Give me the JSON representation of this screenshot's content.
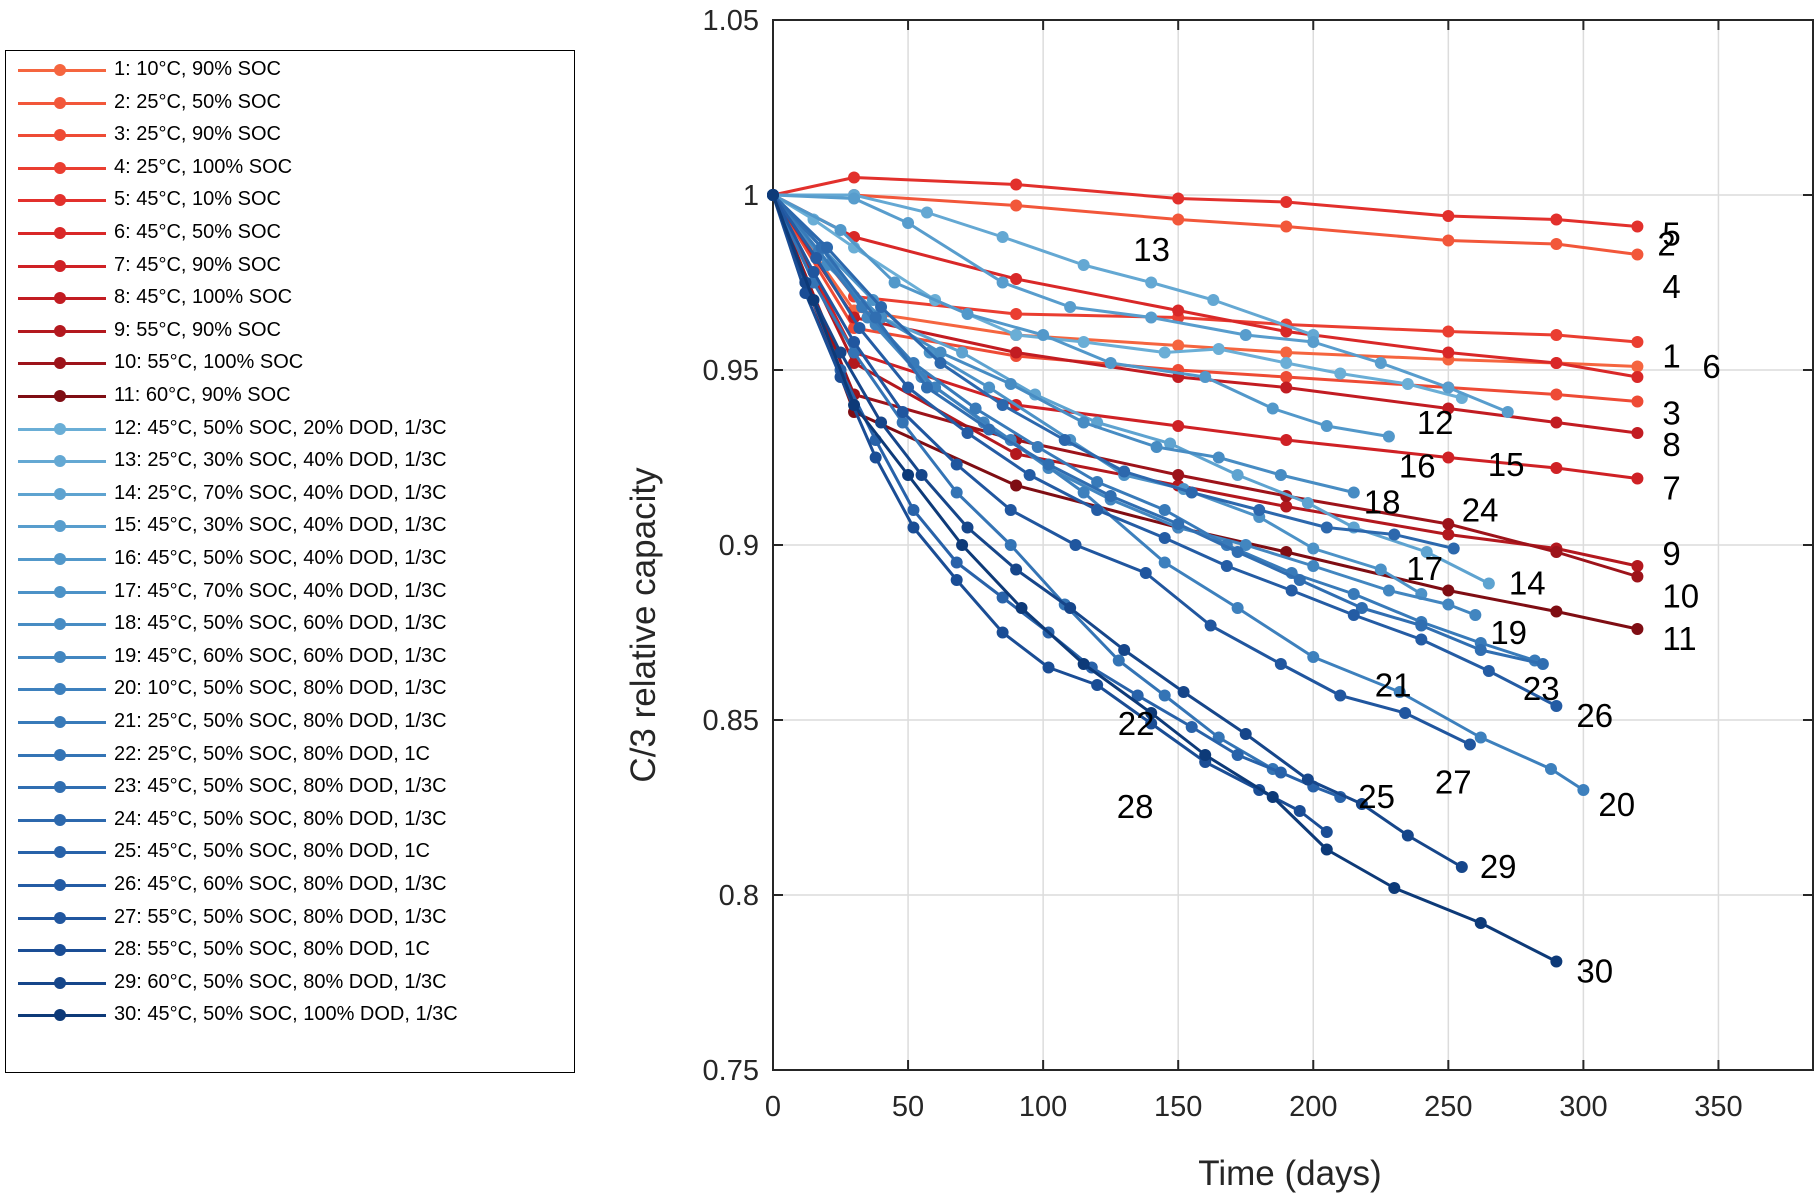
{
  "chart_data": {
    "type": "line",
    "xlabel": "Time (days)",
    "ylabel": "C/3 relative capacity",
    "xlim": [
      0,
      385
    ],
    "ylim": [
      0.75,
      1.05
    ],
    "xticks": [
      "0",
      "50",
      "100",
      "150",
      "200",
      "250",
      "300",
      "350"
    ],
    "yticks": [
      "0.75",
      "0.8",
      "0.85",
      "0.9",
      "0.95",
      "1",
      "1.05"
    ],
    "grid": true,
    "legend_placement": "left, outside",
    "series": [
      {
        "name": "1: 10°C, 90% SOC",
        "label": "1",
        "color": "#f5653f",
        "x": [
          0,
          30,
          90,
          150,
          190,
          250,
          290,
          320
        ],
        "y": [
          1,
          0.967,
          0.96,
          0.957,
          0.955,
          0.953,
          0.952,
          0.951
        ]
      },
      {
        "name": "2: 25°C, 50% SOC",
        "label": "2",
        "color": "#f2573a",
        "x": [
          0,
          30,
          90,
          150,
          190,
          250,
          290,
          320
        ],
        "y": [
          1,
          1.0,
          0.997,
          0.993,
          0.991,
          0.987,
          0.986,
          0.983
        ]
      },
      {
        "name": "3: 25°C, 90% SOC",
        "label": "3",
        "color": "#ee4b35",
        "x": [
          0,
          30,
          90,
          150,
          190,
          250,
          290,
          320
        ],
        "y": [
          1,
          0.962,
          0.954,
          0.95,
          0.948,
          0.945,
          0.943,
          0.941
        ]
      },
      {
        "name": "4: 25°C, 100% SOC",
        "label": "4",
        "color": "#ea3e31",
        "x": [
          0,
          30,
          90,
          150,
          190,
          250,
          290,
          320
        ],
        "y": [
          1,
          0.971,
          0.966,
          0.965,
          0.963,
          0.961,
          0.96,
          0.958
        ]
      },
      {
        "name": "5: 45°C, 10% SOC",
        "label": "5",
        "color": "#e2302c",
        "x": [
          0,
          30,
          90,
          150,
          190,
          250,
          290,
          320
        ],
        "y": [
          1,
          1.005,
          1.003,
          0.999,
          0.998,
          0.994,
          0.993,
          0.991
        ]
      },
      {
        "name": "6: 45°C, 50% SOC",
        "label": "6",
        "color": "#d92828",
        "x": [
          0,
          30,
          90,
          150,
          190,
          250,
          290,
          320
        ],
        "y": [
          1,
          0.988,
          0.976,
          0.967,
          0.961,
          0.955,
          0.952,
          0.948
        ]
      },
      {
        "name": "7: 45°C, 90% SOC",
        "label": "7",
        "color": "#cf2125",
        "x": [
          0,
          30,
          90,
          150,
          190,
          250,
          290,
          320
        ],
        "y": [
          1,
          0.955,
          0.94,
          0.934,
          0.93,
          0.925,
          0.922,
          0.919
        ]
      },
      {
        "name": "8: 45°C, 100% SOC",
        "label": "8",
        "color": "#c21c22",
        "x": [
          0,
          30,
          90,
          150,
          190,
          250,
          290,
          320
        ],
        "y": [
          1,
          0.965,
          0.955,
          0.948,
          0.945,
          0.939,
          0.935,
          0.932
        ]
      },
      {
        "name": "9: 55°C, 90% SOC",
        "label": "9",
        "color": "#b3181e",
        "x": [
          0,
          30,
          90,
          150,
          190,
          250,
          290,
          320
        ],
        "y": [
          1,
          0.952,
          0.926,
          0.917,
          0.911,
          0.903,
          0.899,
          0.894
        ]
      },
      {
        "name": "10: 55°C, 100% SOC",
        "label": "10",
        "color": "#9d131a",
        "x": [
          0,
          30,
          90,
          150,
          190,
          250,
          290,
          320
        ],
        "y": [
          1,
          0.943,
          0.93,
          0.92,
          0.914,
          0.906,
          0.898,
          0.891
        ]
      },
      {
        "name": "11: 60°C, 90% SOC",
        "label": "11",
        "color": "#7f0d13",
        "x": [
          0,
          30,
          90,
          150,
          190,
          250,
          290,
          320
        ],
        "y": [
          1,
          0.938,
          0.917,
          0.905,
          0.898,
          0.887,
          0.881,
          0.876
        ]
      },
      {
        "name": "12: 45°C, 50% SOC, 20% DOD, 1/3C",
        "label": "12",
        "color": "#6aaed6",
        "x": [
          0,
          15,
          30,
          60,
          90,
          115,
          145,
          165,
          190,
          210,
          235,
          255
        ],
        "y": [
          1,
          0.993,
          0.985,
          0.97,
          0.96,
          0.958,
          0.955,
          0.956,
          0.952,
          0.949,
          0.946,
          0.942
        ]
      },
      {
        "name": "13: 25°C, 30% SOC, 40% DOD, 1/3C",
        "label": "13",
        "color": "#64a8d3",
        "x": [
          0,
          30,
          57,
          85,
          115,
          140,
          163,
          200
        ],
        "y": [
          1,
          1.0,
          0.995,
          0.988,
          0.98,
          0.975,
          0.97,
          0.96
        ]
      },
      {
        "name": "14: 25°C, 70% SOC, 40% DOD, 1/3C",
        "label": "14",
        "color": "#5ea3d0",
        "x": [
          0,
          20,
          40,
          70,
          97,
          120,
          147,
          172,
          198,
          215,
          242,
          265
        ],
        "y": [
          1,
          0.98,
          0.965,
          0.955,
          0.943,
          0.935,
          0.929,
          0.92,
          0.912,
          0.905,
          0.898,
          0.889
        ]
      },
      {
        "name": "15: 45°C, 30% SOC, 40% DOD, 1/3C",
        "label": "15",
        "color": "#589dcd",
        "x": [
          0,
          30,
          50,
          85,
          110,
          140,
          175,
          200,
          225,
          250,
          272
        ],
        "y": [
          1,
          0.999,
          0.992,
          0.975,
          0.968,
          0.965,
          0.96,
          0.958,
          0.952,
          0.945,
          0.938
        ]
      },
      {
        "name": "16: 45°C, 50% SOC, 40% DOD, 1/3C",
        "label": "16",
        "color": "#5298ca",
        "x": [
          0,
          25,
          45,
          72,
          100,
          125,
          160,
          185,
          205,
          228
        ],
        "y": [
          1,
          0.99,
          0.975,
          0.966,
          0.96,
          0.952,
          0.948,
          0.939,
          0.934,
          0.931
        ]
      },
      {
        "name": "17: 45°C, 70% SOC, 40% DOD, 1/3C",
        "label": "17",
        "color": "#4c92c7",
        "x": [
          0,
          18,
          37,
          58,
          80,
          110,
          130,
          152,
          180,
          200,
          225,
          240
        ],
        "y": [
          1,
          0.985,
          0.97,
          0.955,
          0.945,
          0.93,
          0.92,
          0.916,
          0.908,
          0.899,
          0.893,
          0.886
        ]
      },
      {
        "name": "18: 45°C, 50% SOC, 60% DOD, 1/3C",
        "label": "18",
        "color": "#478cc3",
        "x": [
          0,
          20,
          40,
          62,
          88,
          115,
          142,
          165,
          188,
          215
        ],
        "y": [
          1,
          0.98,
          0.965,
          0.955,
          0.946,
          0.935,
          0.928,
          0.925,
          0.92,
          0.915
        ]
      },
      {
        "name": "19: 45°C, 60% SOC, 60% DOD, 1/3C",
        "label": "19",
        "color": "#4286c0",
        "x": [
          0,
          18,
          35,
          55,
          78,
          102,
          125,
          150,
          175,
          200,
          228,
          250,
          260
        ],
        "y": [
          1,
          0.985,
          0.965,
          0.948,
          0.935,
          0.922,
          0.913,
          0.905,
          0.9,
          0.894,
          0.887,
          0.883,
          0.88
        ]
      },
      {
        "name": "20: 10°C, 50% SOC, 80% DOD, 1/3C",
        "label": "20",
        "color": "#3d80bd",
        "x": [
          0,
          18,
          38,
          60,
          88,
          115,
          145,
          172,
          200,
          232,
          262,
          288,
          300
        ],
        "y": [
          1,
          0.985,
          0.963,
          0.945,
          0.93,
          0.915,
          0.895,
          0.882,
          0.868,
          0.858,
          0.845,
          0.836,
          0.83
        ]
      },
      {
        "name": "21: 25°C, 50% SOC, 80% DOD, 1/3C",
        "label": "21",
        "color": "#387ab9",
        "x": [
          0,
          17,
          33,
          52,
          75,
          98,
          120,
          145,
          168,
          192,
          215,
          240,
          262,
          282
        ],
        "y": [
          1,
          0.984,
          0.968,
          0.952,
          0.939,
          0.928,
          0.918,
          0.91,
          0.9,
          0.892,
          0.886,
          0.878,
          0.872,
          0.867
        ]
      },
      {
        "name": "22: 25°C, 50% SOC, 80% DOD, 1C",
        "label": "22",
        "color": "#3474b5",
        "x": [
          0,
          15,
          30,
          48,
          68,
          88,
          108,
          128,
          145,
          165,
          185
        ],
        "y": [
          1,
          0.975,
          0.955,
          0.935,
          0.915,
          0.9,
          0.883,
          0.867,
          0.857,
          0.845,
          0.836
        ]
      },
      {
        "name": "23: 45°C, 50% SOC, 80% DOD, 1/3C",
        "label": "23",
        "color": "#306eb1",
        "x": [
          0,
          18,
          38,
          57,
          80,
          102,
          125,
          150,
          172,
          195,
          218,
          240,
          262,
          285
        ],
        "y": [
          1,
          0.985,
          0.965,
          0.945,
          0.933,
          0.923,
          0.914,
          0.906,
          0.898,
          0.89,
          0.882,
          0.877,
          0.87,
          0.866
        ]
      },
      {
        "name": "24: 45°C, 50% SOC, 80% DOD, 1/3C",
        "label": "24",
        "color": "#2c68ad",
        "x": [
          0,
          20,
          40,
          62,
          85,
          108,
          130,
          155,
          180,
          205,
          230,
          252
        ],
        "y": [
          1,
          0.985,
          0.968,
          0.952,
          0.94,
          0.93,
          0.921,
          0.915,
          0.91,
          0.905,
          0.903,
          0.899
        ]
      },
      {
        "name": "25: 45°C, 50% SOC, 80% DOD, 1C",
        "label": "25",
        "color": "#2862a9",
        "x": [
          0,
          12,
          25,
          38,
          52,
          68,
          85,
          102,
          118,
          135,
          155,
          172,
          188,
          200,
          210
        ],
        "y": [
          1,
          0.975,
          0.95,
          0.93,
          0.91,
          0.895,
          0.885,
          0.875,
          0.865,
          0.857,
          0.848,
          0.84,
          0.835,
          0.831,
          0.828
        ]
      },
      {
        "name": "26: 45°C, 60% SOC, 80% DOD, 1/3C",
        "label": "26",
        "color": "#245ca4",
        "x": [
          0,
          16,
          32,
          50,
          72,
          95,
          120,
          145,
          168,
          192,
          215,
          240,
          265,
          290
        ],
        "y": [
          1,
          0.982,
          0.962,
          0.945,
          0.932,
          0.92,
          0.91,
          0.902,
          0.894,
          0.887,
          0.88,
          0.873,
          0.864,
          0.854
        ]
      },
      {
        "name": "27: 55°C, 50% SOC, 80% DOD, 1/3C",
        "label": "27",
        "color": "#20569f",
        "x": [
          0,
          15,
          30,
          48,
          68,
          88,
          112,
          138,
          162,
          188,
          210,
          234,
          258
        ],
        "y": [
          1,
          0.978,
          0.958,
          0.938,
          0.923,
          0.91,
          0.9,
          0.892,
          0.877,
          0.866,
          0.857,
          0.852,
          0.843
        ]
      },
      {
        "name": "28: 55°C, 50% SOC, 80% DOD, 1C",
        "label": "28",
        "color": "#1a4d95",
        "x": [
          0,
          12,
          25,
          38,
          52,
          68,
          85,
          102,
          120,
          140,
          160,
          180,
          195,
          205
        ],
        "y": [
          1,
          0.972,
          0.948,
          0.925,
          0.905,
          0.89,
          0.875,
          0.865,
          0.86,
          0.849,
          0.838,
          0.83,
          0.824,
          0.818
        ]
      },
      {
        "name": "29: 60°C, 50% SOC, 80% DOD, 1/3C",
        "label": "29",
        "color": "#16468a",
        "x": [
          0,
          12,
          25,
          40,
          55,
          72,
          90,
          110,
          130,
          152,
          175,
          198,
          218,
          235,
          255
        ],
        "y": [
          1,
          0.975,
          0.955,
          0.935,
          0.92,
          0.905,
          0.893,
          0.882,
          0.87,
          0.858,
          0.846,
          0.833,
          0.826,
          0.817,
          0.808
        ]
      },
      {
        "name": "30: 45°C, 50% SOC, 100% DOD, 1/3C",
        "label": "30",
        "color": "#0d3a78",
        "x": [
          0,
          15,
          30,
          50,
          70,
          92,
          115,
          140,
          160,
          185,
          205,
          230,
          262,
          290
        ],
        "y": [
          1,
          0.97,
          0.94,
          0.92,
          0.9,
          0.882,
          0.866,
          0.852,
          0.84,
          0.828,
          0.813,
          0.802,
          0.792,
          0.781
        ]
      }
    ],
    "series_label_positions_note": "labels placed at series ends"
  }
}
